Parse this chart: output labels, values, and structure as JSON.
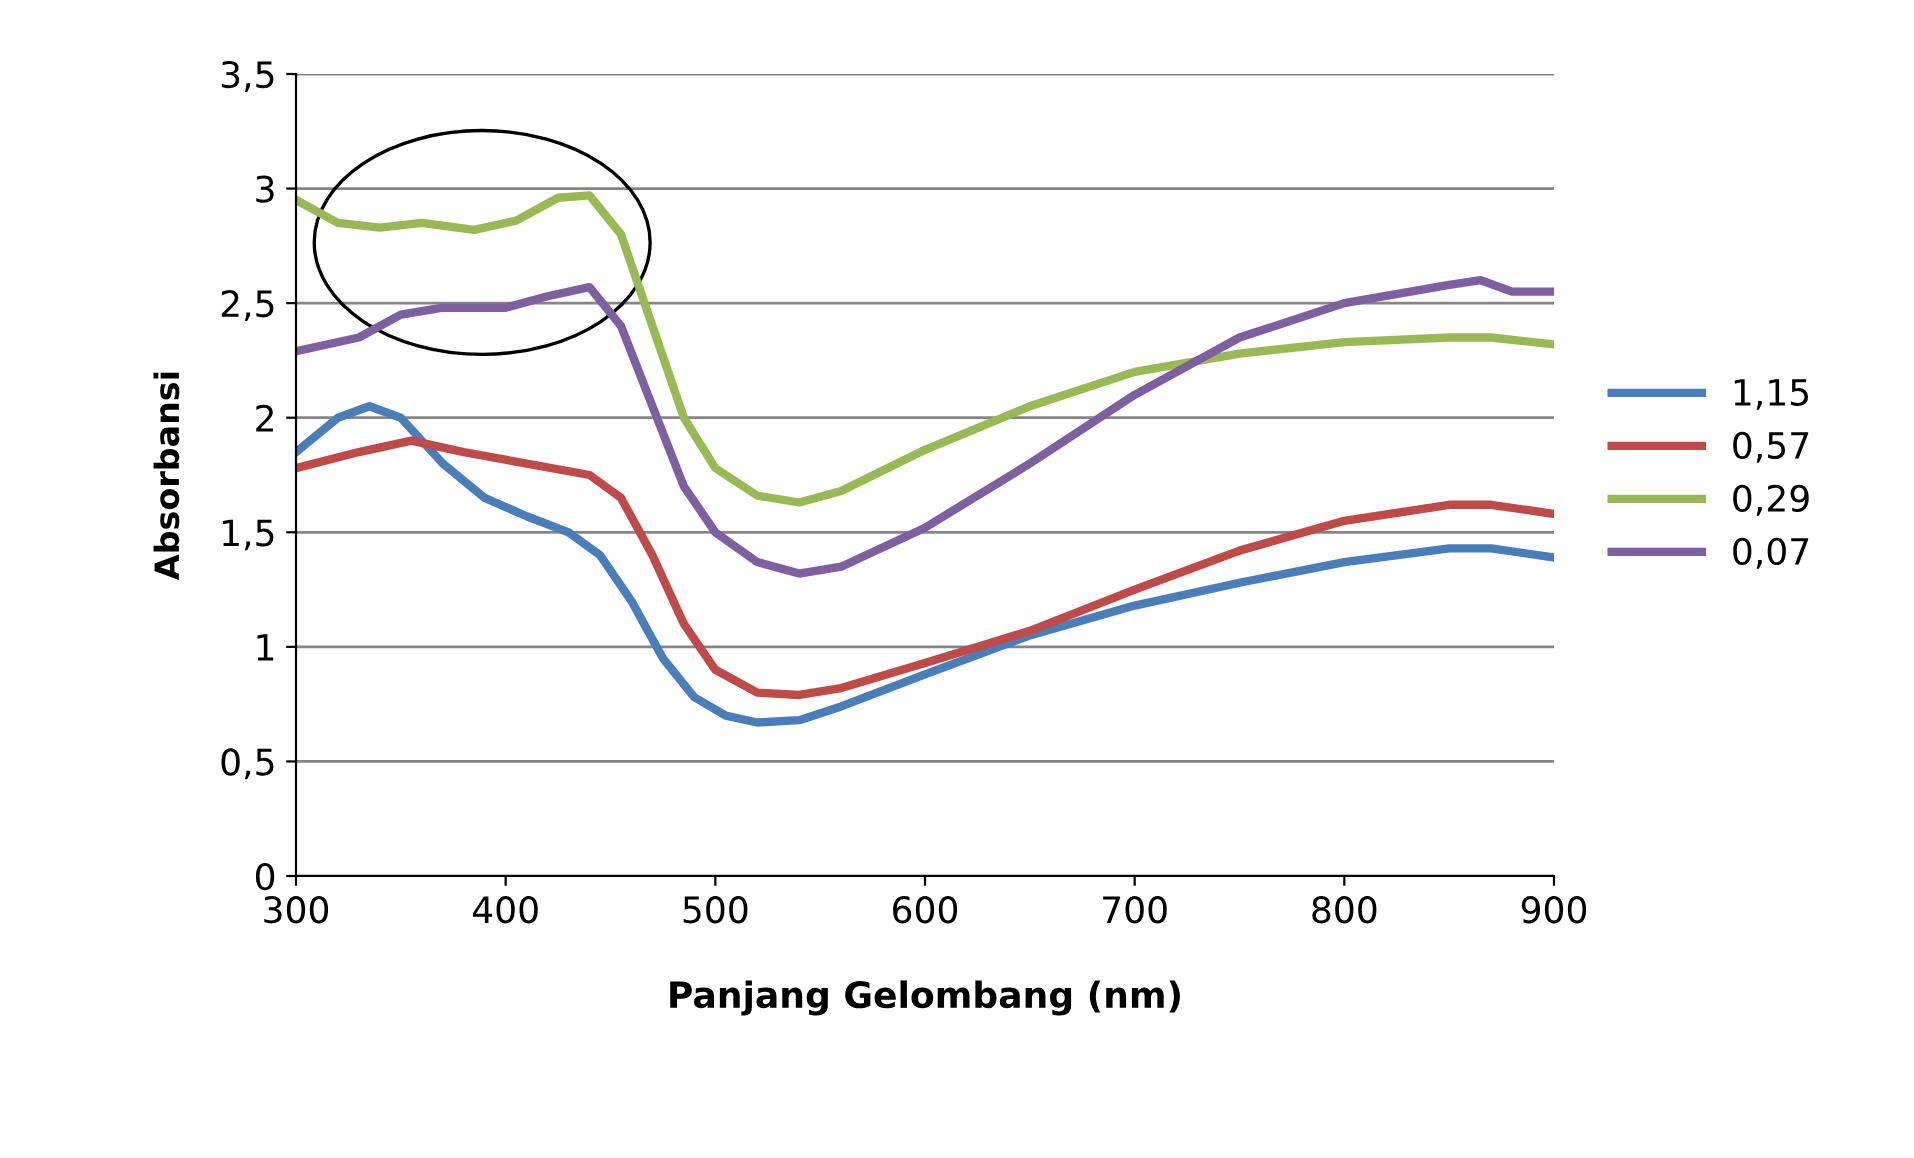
{
  "chart_data": {
    "type": "line",
    "xlabel": "Panjang Gelombang (nm)",
    "ylabel": "Absorbansi",
    "xlim": [
      300,
      900
    ],
    "ylim": [
      0,
      3.5
    ],
    "xticks": [
      300,
      400,
      500,
      600,
      700,
      800,
      900
    ],
    "yticks": [
      {
        "value": 0,
        "label": "0"
      },
      {
        "value": 0.5,
        "label": "0,5"
      },
      {
        "value": 1,
        "label": "1"
      },
      {
        "value": 1.5,
        "label": "1,5"
      },
      {
        "value": 2,
        "label": "2"
      },
      {
        "value": 2.5,
        "label": "2,5"
      },
      {
        "value": 3,
        "label": "3"
      },
      {
        "value": 3.5,
        "label": "3,5"
      }
    ],
    "grid": "y",
    "legend": "right",
    "marker": "none",
    "line_style": "solid",
    "series": [
      {
        "name": "1,15",
        "color": "#4a7ebb",
        "x": [
          300,
          320,
          335,
          350,
          370,
          390,
          410,
          430,
          445,
          460,
          475,
          490,
          505,
          520,
          540,
          560,
          600,
          650,
          700,
          750,
          800,
          850,
          870,
          900
        ],
        "values": [
          1.85,
          2.0,
          2.05,
          2.0,
          1.8,
          1.65,
          1.57,
          1.5,
          1.4,
          1.2,
          0.95,
          0.78,
          0.7,
          0.67,
          0.68,
          0.74,
          0.88,
          1.05,
          1.18,
          1.28,
          1.37,
          1.43,
          1.43,
          1.39
        ]
      },
      {
        "name": "0,57",
        "color": "#be4b48",
        "x": [
          300,
          330,
          355,
          380,
          410,
          440,
          455,
          470,
          485,
          500,
          520,
          540,
          560,
          600,
          650,
          700,
          750,
          800,
          850,
          870,
          900
        ],
        "values": [
          1.78,
          1.85,
          1.9,
          1.85,
          1.8,
          1.75,
          1.65,
          1.4,
          1.1,
          0.9,
          0.8,
          0.79,
          0.82,
          0.93,
          1.07,
          1.25,
          1.42,
          1.55,
          1.62,
          1.62,
          1.58
        ]
      },
      {
        "name": "0,29",
        "color": "#98b954",
        "x": [
          300,
          320,
          340,
          360,
          385,
          405,
          425,
          440,
          455,
          470,
          485,
          500,
          520,
          540,
          560,
          600,
          650,
          700,
          750,
          800,
          850,
          870,
          900
        ],
        "values": [
          2.95,
          2.85,
          2.83,
          2.85,
          2.82,
          2.86,
          2.96,
          2.97,
          2.8,
          2.4,
          2.0,
          1.78,
          1.66,
          1.63,
          1.68,
          1.86,
          2.05,
          2.2,
          2.28,
          2.33,
          2.35,
          2.35,
          2.32
        ]
      },
      {
        "name": "0,07",
        "color": "#7d60a0",
        "x": [
          300,
          330,
          350,
          370,
          400,
          420,
          440,
          455,
          470,
          485,
          500,
          520,
          540,
          560,
          600,
          650,
          700,
          750,
          800,
          850,
          865,
          880,
          900
        ],
        "values": [
          2.29,
          2.35,
          2.45,
          2.48,
          2.48,
          2.53,
          2.57,
          2.4,
          2.05,
          1.7,
          1.5,
          1.37,
          1.32,
          1.35,
          1.52,
          1.8,
          2.1,
          2.35,
          2.5,
          2.58,
          2.6,
          2.55,
          2.55
        ]
      }
    ]
  }
}
